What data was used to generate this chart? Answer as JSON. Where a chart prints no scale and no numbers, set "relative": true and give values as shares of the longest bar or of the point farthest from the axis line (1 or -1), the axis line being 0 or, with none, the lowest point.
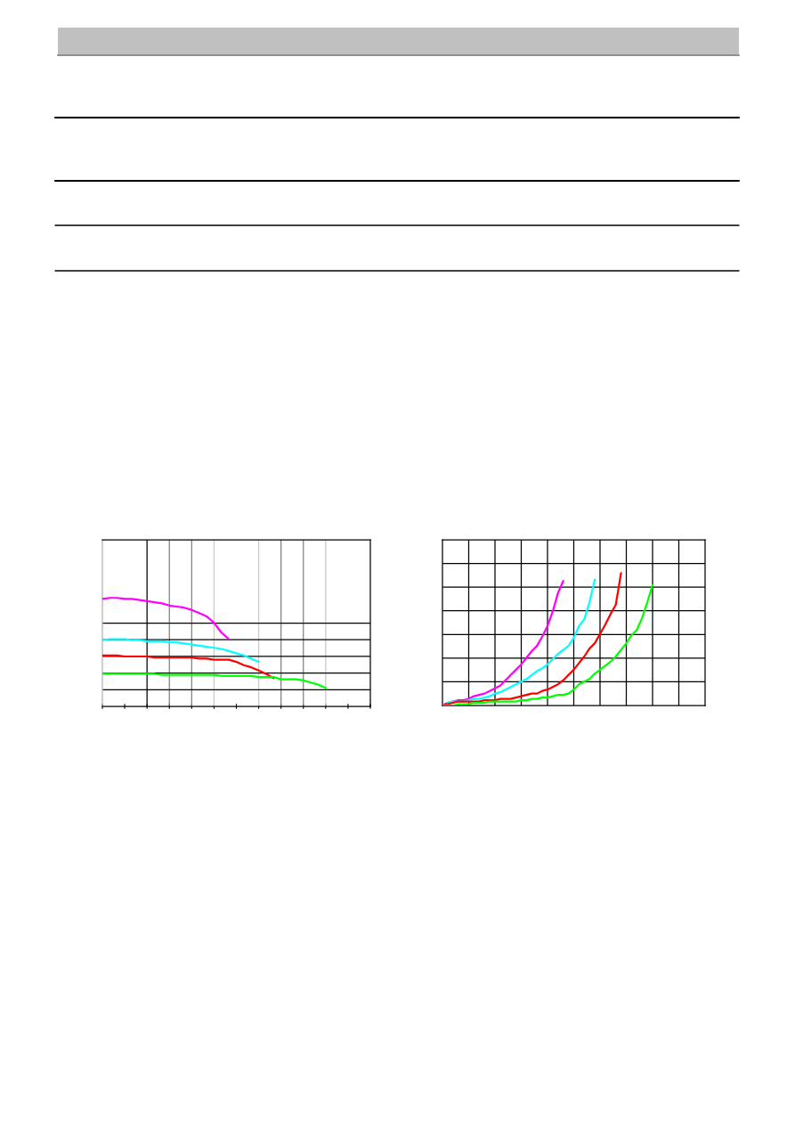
{
  "chart_data": [
    {
      "type": "line",
      "relative": true,
      "grid": true,
      "categories": [
        null,
        null,
        null,
        null,
        null,
        null,
        null,
        null,
        null,
        null,
        null,
        null,
        null,
        null,
        null,
        null,
        null,
        null,
        null,
        null,
        null,
        null,
        null,
        null,
        null,
        null,
        null,
        null,
        null,
        null,
        null,
        null,
        null,
        null,
        null,
        null,
        null
      ],
      "series": [
        {
          "color": "#ff00ff",
          "values": [
            0.99,
            1.0,
            1.0,
            0.99,
            0.99,
            0.98,
            0.97,
            0.96,
            0.95,
            0.93,
            0.92,
            0.91,
            0.89,
            0.86,
            0.83,
            0.77,
            0.68,
            0.62,
            null,
            null,
            null,
            null,
            null,
            null,
            null,
            null,
            null,
            null,
            null,
            null,
            null,
            null,
            null,
            null,
            null,
            null,
            null
          ]
        },
        {
          "color": "#00ffff",
          "values": [
            0.61,
            0.62,
            0.62,
            0.62,
            0.61,
            0.61,
            0.6,
            0.6,
            0.6,
            0.59,
            0.59,
            0.58,
            0.57,
            0.56,
            0.55,
            0.54,
            0.53,
            0.51,
            0.49,
            0.47,
            0.44,
            0.41,
            null,
            null,
            null,
            null,
            null,
            null,
            null,
            null,
            null,
            null,
            null,
            null,
            null,
            null,
            null
          ]
        },
        {
          "color": "#ff0000",
          "values": [
            0.47,
            0.47,
            0.47,
            0.46,
            0.46,
            0.46,
            0.46,
            0.45,
            0.45,
            0.45,
            0.45,
            0.45,
            0.45,
            0.44,
            0.44,
            0.43,
            0.43,
            0.43,
            0.41,
            0.38,
            0.36,
            0.33,
            0.3,
            0.26,
            null,
            null,
            null,
            null,
            null,
            null,
            null,
            null,
            null,
            null,
            null,
            null,
            null
          ]
        },
        {
          "color": "#00ff00",
          "values": [
            0.3,
            0.3,
            0.3,
            0.3,
            0.3,
            0.3,
            0.3,
            0.3,
            0.29,
            0.29,
            0.29,
            0.29,
            0.29,
            0.29,
            0.29,
            0.29,
            0.28,
            0.28,
            0.28,
            0.28,
            0.28,
            0.27,
            0.27,
            0.27,
            0.25,
            0.25,
            0.25,
            0.24,
            0.22,
            0.2,
            0.17,
            null,
            null,
            null,
            null,
            null,
            null
          ]
        }
      ]
    },
    {
      "type": "line",
      "relative": true,
      "grid": true,
      "categories": [
        null,
        null,
        null,
        null,
        null,
        null,
        null,
        null,
        null,
        null,
        null,
        null,
        null,
        null,
        null,
        null,
        null,
        null,
        null,
        null,
        null,
        null,
        null,
        null,
        null,
        null,
        null,
        null,
        null,
        null,
        null,
        null,
        null,
        null,
        null,
        null,
        null,
        null,
        null,
        null,
        null,
        null,
        null,
        null,
        null,
        null,
        null,
        null,
        null,
        null,
        null
      ],
      "series": [
        {
          "color": "#ff00ff",
          "values": [
            0.0,
            0.02,
            0.03,
            0.04,
            0.04,
            0.05,
            0.07,
            0.08,
            0.09,
            0.11,
            0.13,
            0.15,
            0.19,
            0.23,
            0.27,
            0.31,
            0.36,
            0.41,
            0.45,
            0.52,
            0.6,
            0.71,
            0.85,
            0.94,
            null,
            null,
            null,
            null,
            null,
            null,
            null,
            null,
            null,
            null,
            null,
            null,
            null,
            null,
            null,
            null,
            null,
            null,
            null,
            null,
            null,
            null,
            null,
            null,
            null,
            null,
            null
          ]
        },
        {
          "color": "#00ffff",
          "values": [
            null,
            0.02,
            0.03,
            0.03,
            0.03,
            0.04,
            0.05,
            0.05,
            0.06,
            0.07,
            0.09,
            0.1,
            0.12,
            0.14,
            0.16,
            0.18,
            0.2,
            0.23,
            0.26,
            0.28,
            0.31,
            0.35,
            0.39,
            0.42,
            0.45,
            0.51,
            0.6,
            0.65,
            0.78,
            0.95,
            null,
            null,
            null,
            null,
            null,
            null,
            null,
            null,
            null,
            null,
            null,
            null,
            null,
            null,
            null,
            null,
            null,
            null,
            null,
            null,
            null
          ]
        },
        {
          "color": "#ff0000",
          "values": [
            0.0,
            0.01,
            0.02,
            0.03,
            0.03,
            0.03,
            0.03,
            0.03,
            0.04,
            0.04,
            0.04,
            0.05,
            0.05,
            0.05,
            0.06,
            0.07,
            0.08,
            0.09,
            0.09,
            0.11,
            0.12,
            0.14,
            0.16,
            0.19,
            0.23,
            0.27,
            0.32,
            0.37,
            0.43,
            0.47,
            0.54,
            0.61,
            0.69,
            0.76,
            1.0,
            null,
            null,
            null,
            null,
            null,
            null,
            null,
            null,
            null,
            null,
            null,
            null,
            null,
            null,
            null,
            null
          ]
        },
        {
          "color": "#00ff00",
          "values": [
            0.0,
            0.0,
            0.0,
            0.01,
            0.01,
            0.01,
            0.02,
            0.02,
            0.02,
            0.03,
            0.03,
            0.03,
            0.03,
            0.03,
            0.03,
            0.04,
            0.04,
            0.05,
            0.05,
            0.06,
            0.06,
            0.07,
            0.08,
            0.08,
            0.09,
            0.12,
            0.16,
            0.18,
            0.2,
            0.24,
            0.27,
            0.3,
            0.33,
            0.37,
            0.42,
            0.47,
            0.53,
            0.57,
            0.66,
            0.78,
            0.91,
            null,
            null,
            null,
            null,
            null,
            null,
            null,
            null,
            null,
            null
          ]
        }
      ]
    }
  ]
}
